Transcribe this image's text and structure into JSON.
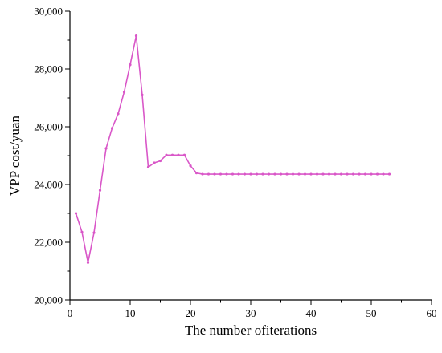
{
  "chart_data": {
    "type": "line",
    "title": "",
    "xlabel": "The number ofiterations",
    "ylabel": "VPP cost/yuan",
    "xlim": [
      0,
      60
    ],
    "ylim": [
      20000,
      30000
    ],
    "xticks": [
      0,
      10,
      20,
      30,
      40,
      50,
      60
    ],
    "yticks": [
      20000,
      22000,
      24000,
      26000,
      28000,
      30000
    ],
    "xtick_labels": [
      "0",
      "10",
      "20",
      "30",
      "40",
      "50",
      "60"
    ],
    "ytick_labels": [
      "20,000",
      "22,000",
      "24,000",
      "26,000",
      "28,000",
      "30,000"
    ],
    "grid": false,
    "legend": "none",
    "line_color": "#d957c8",
    "series": [
      {
        "x": [
          1,
          2,
          3,
          4,
          5,
          6,
          7,
          8,
          9,
          10,
          11,
          12,
          13,
          14,
          15,
          16,
          17,
          18,
          19,
          20,
          21,
          22,
          23,
          24,
          25,
          26,
          27,
          28,
          29,
          30,
          31,
          32,
          33,
          34,
          35,
          36,
          37,
          38,
          39,
          40,
          41,
          42,
          43,
          44,
          45,
          46,
          47,
          48,
          49,
          50,
          51,
          52,
          53
        ],
        "values": [
          23000,
          22350,
          21300,
          22330,
          23800,
          25250,
          25950,
          26450,
          27200,
          28150,
          29150,
          27100,
          24600,
          24750,
          24820,
          25020,
          25020,
          25020,
          25020,
          24650,
          24400,
          24360,
          24360,
          24360,
          24360,
          24360,
          24360,
          24360,
          24360,
          24360,
          24360,
          24360,
          24360,
          24360,
          24360,
          24360,
          24360,
          24360,
          24360,
          24360,
          24360,
          24360,
          24360,
          24360,
          24360,
          24360,
          24360,
          24360,
          24360,
          24360,
          24360,
          24360,
          24360
        ]
      }
    ]
  }
}
